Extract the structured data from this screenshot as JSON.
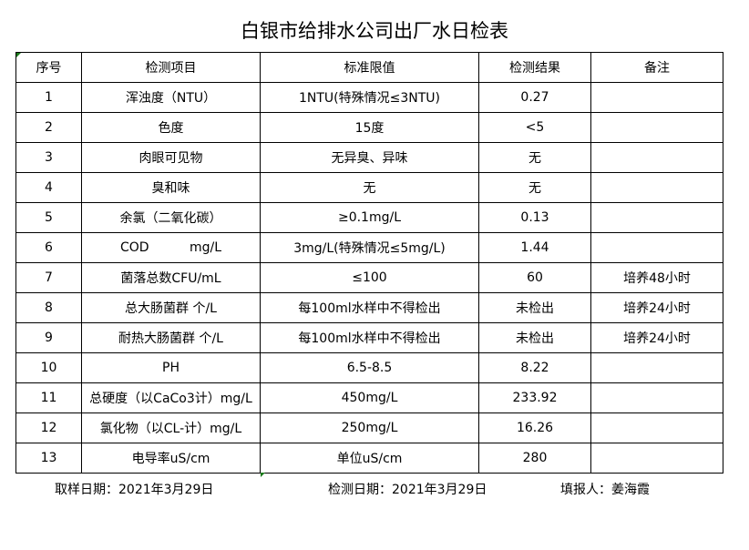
{
  "title": "白银市给排水公司出厂水日检表",
  "headers": [
    "序号",
    "检测项目",
    "标准限值",
    "检测结果",
    "备注"
  ],
  "rows": [
    [
      "1",
      "浑浊度（NTU）",
      "1NTU(特殊情况≤3NTU)",
      "0.27",
      ""
    ],
    [
      "2",
      "色度",
      "15度",
      "<5",
      ""
    ],
    [
      "3",
      "肉眼可见物",
      "无异臭、异味",
      "无",
      ""
    ],
    [
      "4",
      "臭和味",
      "无",
      "无",
      ""
    ],
    [
      "5",
      "余氯（二氧化碳）",
      "≥0.1mg/L",
      "0.13",
      ""
    ],
    [
      "6",
      "COD          mg/L",
      "3mg/L(特殊情况≤5mg/L)",
      "1.44",
      ""
    ],
    [
      "7",
      "菌落总数CFU/mL",
      "≤100",
      "60",
      "培养48小时"
    ],
    [
      "8",
      "总大肠菌群 个/L",
      "每100ml水样中不得检出",
      "未检出",
      "培养24小时"
    ],
    [
      "9",
      "耐热大肠菌群 个/L",
      "每100ml水样中不得检出",
      "未检出",
      "培养24小时"
    ],
    [
      "10",
      "PH",
      "6.5-8.5",
      "8.22",
      ""
    ],
    [
      "11",
      "总硬度（以CaCo3计）mg/L",
      "450mg/L",
      "233.92",
      ""
    ],
    [
      "12",
      "氯化物（以CL-计）mg/L",
      "250mg/L",
      "16.26",
      ""
    ],
    [
      "13",
      "电导率uS/cm",
      "单位uS/cm",
      "280",
      ""
    ]
  ],
  "footer": {
    "sample_date": "取样日期：2021年3月29日",
    "test_date": "检测日期：2021年3月29日",
    "reporter": "填报人：姜海霞"
  }
}
